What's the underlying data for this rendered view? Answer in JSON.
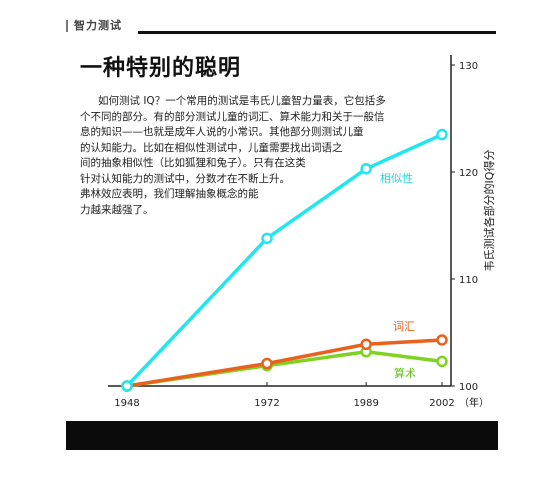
{
  "header": {
    "section_label": "智力测试",
    "title": "一种特别的聪明"
  },
  "article": {
    "lines": [
      "如何测试 IQ？一个常用的测试是韦氏儿童智力量表，它包括多",
      "个不同的部分。有的部分测试儿童的词汇、算术能力和关于一般信",
      "息的知识——也就是成年人说的小常识。其他部分则测试儿童",
      "的认知能力。比如在相似性测试中，儿童需要找出词语之",
      "间的抽象相似性（比如狐狸和兔子）。只有在这类",
      "针对认知能力的测试中，分数才在不断上升。",
      "弗林效应表明，我们理解抽象概念的能",
      "力越来越强了。"
    ]
  },
  "chart_data": {
    "type": "line",
    "x": [
      1948,
      1972,
      1989,
      2002
    ],
    "xlabel": "（年）",
    "ylabel": "韦氏测试各部分的IQ得分",
    "ylim": [
      100,
      130
    ],
    "yticks": [
      100,
      110,
      120,
      130
    ],
    "axis_position": "right",
    "grid": false,
    "series": [
      {
        "name": "相似性",
        "values": [
          100,
          113.8,
          120.3,
          123.5
        ],
        "color": "#22e6ee",
        "label_color": "#22d6e6"
      },
      {
        "name": "词汇",
        "values": [
          100,
          102.1,
          103.9,
          104.3
        ],
        "color": "#e8621e",
        "label_color": "#e8621e"
      },
      {
        "name": "算术",
        "values": [
          100,
          101.9,
          103.2,
          102.3
        ],
        "color": "#7ed321",
        "label_color": "#66c21a"
      }
    ]
  }
}
